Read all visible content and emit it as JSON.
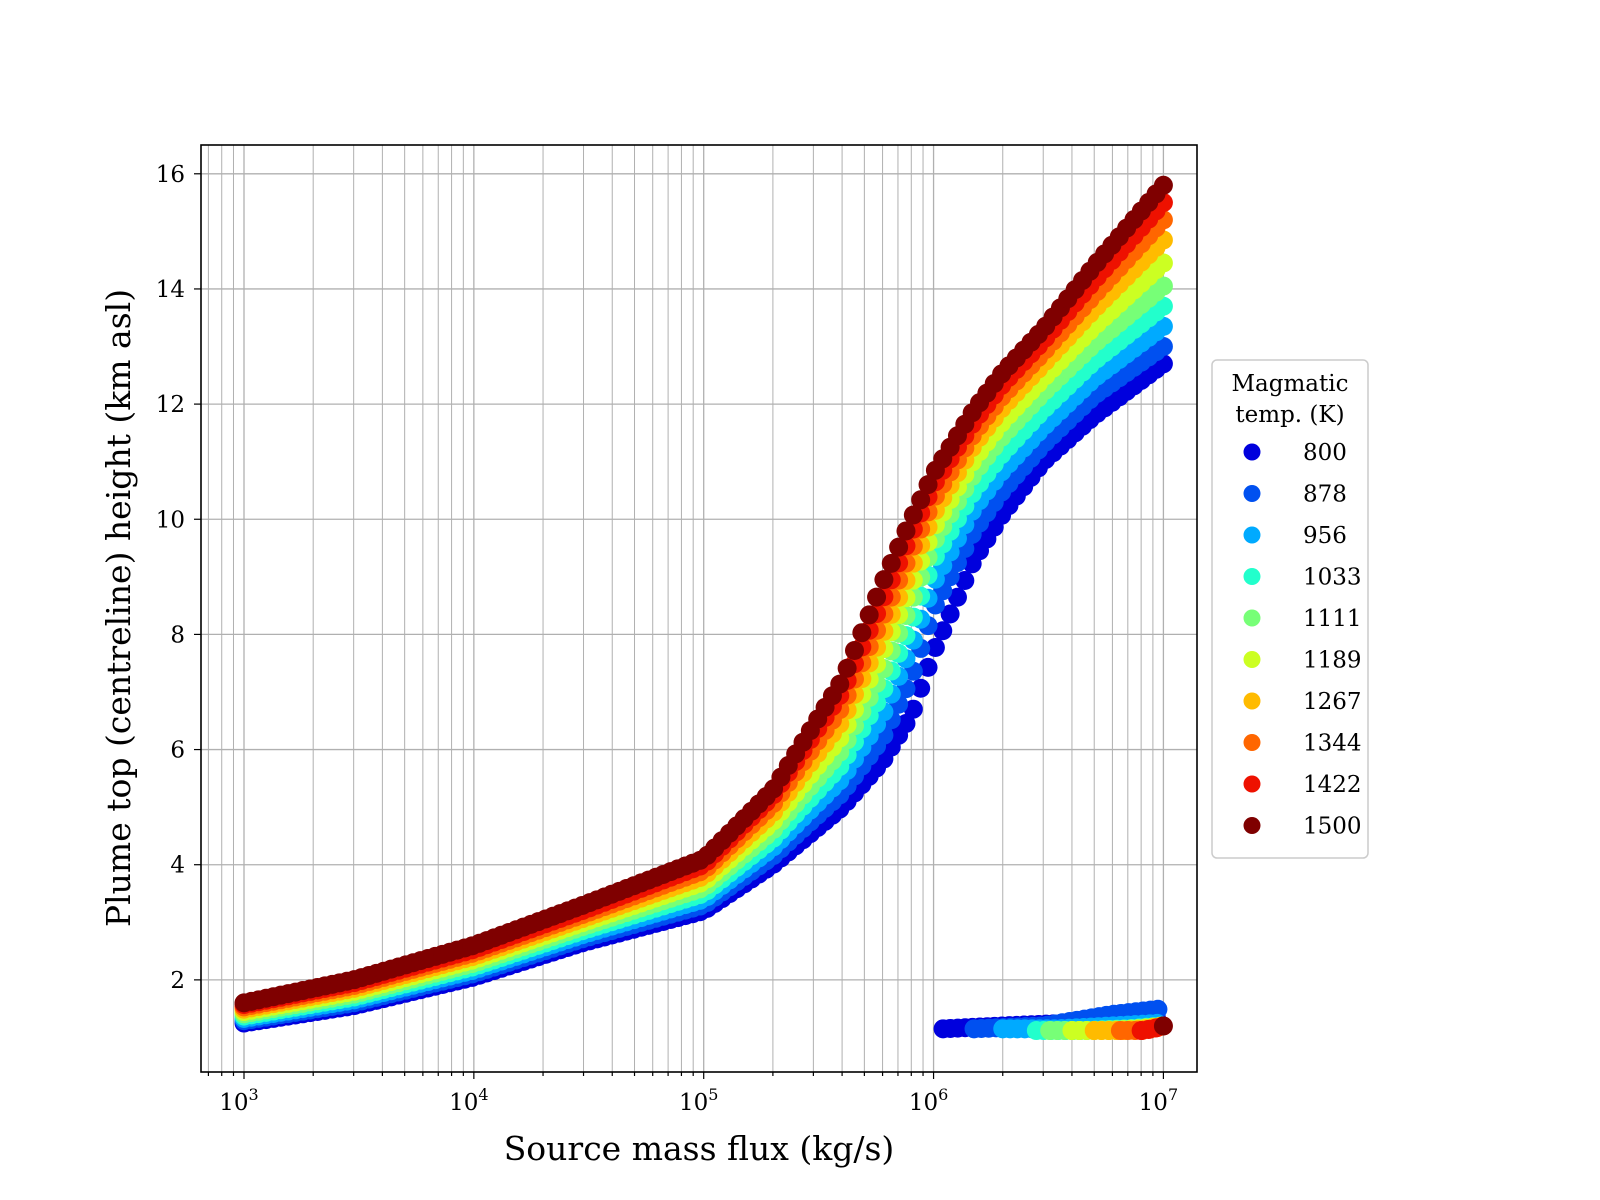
{
  "chart_data": {
    "type": "scatter",
    "title": "",
    "xlabel": "Source mass flux (kg/s)",
    "ylabel": "Plume top (centreline) height (km asl)",
    "xscale": "log",
    "xlim": [
      650,
      14000000
    ],
    "ylim": [
      0.4,
      16.5
    ],
    "x_ticks": [
      1000,
      10000,
      100000,
      1000000,
      10000000
    ],
    "x_tick_labels": [
      {
        "base": "10",
        "exp": "3"
      },
      {
        "base": "10",
        "exp": "4"
      },
      {
        "base": "10",
        "exp": "5"
      },
      {
        "base": "10",
        "exp": "6"
      },
      {
        "base": "10",
        "exp": "7"
      }
    ],
    "y_ticks": [
      2,
      4,
      6,
      8,
      10,
      12,
      14,
      16
    ],
    "y_tick_labels": [
      "2",
      "4",
      "6",
      "8",
      "10",
      "12",
      "14",
      "16"
    ],
    "grid": true,
    "legend": {
      "title_lines": [
        "Magmatic",
        "temp. (K)"
      ],
      "placement": "right-outside"
    },
    "series": [
      {
        "name": "800",
        "color": "#0000dd",
        "upper_branch": {
          "x": [
            1000,
            3000,
            10000,
            30000,
            100000,
            200000,
            400000,
            600000,
            800000,
            1000000,
            1500000,
            2000000,
            3000000,
            5000000,
            10000000
          ],
          "y": [
            1.25,
            1.55,
            2.05,
            2.65,
            3.2,
            4.0,
            5.0,
            5.8,
            6.6,
            7.7,
            9.3,
            10.1,
            11.0,
            11.8,
            12.7
          ]
        },
        "lower_branch": {
          "x": [
            1100000,
            2000000,
            4000000,
            10000000
          ],
          "y": [
            1.15,
            1.2,
            1.25,
            1.35
          ]
        }
      },
      {
        "name": "878",
        "color": "#0050f0",
        "upper_branch": {
          "x": [
            1000,
            3000,
            10000,
            30000,
            100000,
            200000,
            400000,
            600000,
            800000,
            1000000,
            1500000,
            2000000,
            3000000,
            5000000,
            10000000
          ],
          "y": [
            1.29,
            1.6,
            2.11,
            2.72,
            3.3,
            4.15,
            5.25,
            6.2,
            7.25,
            8.45,
            9.8,
            10.5,
            11.3,
            12.15,
            13.0
          ]
        },
        "lower_branch": {
          "x": [
            1500000,
            3000000,
            6000000,
            10000000
          ],
          "y": [
            1.15,
            1.2,
            1.4,
            1.5
          ]
        }
      },
      {
        "name": "956",
        "color": "#00aaff",
        "upper_branch": {
          "x": [
            1000,
            3000,
            10000,
            30000,
            100000,
            200000,
            400000,
            600000,
            800000,
            1000000,
            1500000,
            2000000,
            3000000,
            5000000,
            10000000
          ],
          "y": [
            1.33,
            1.65,
            2.17,
            2.79,
            3.4,
            4.3,
            5.5,
            6.6,
            7.8,
            8.9,
            10.2,
            10.85,
            11.6,
            12.45,
            13.35
          ]
        },
        "lower_branch": {
          "x": [
            2000000,
            3500000,
            6000000,
            10000000
          ],
          "y": [
            1.15,
            1.15,
            1.2,
            1.25
          ]
        }
      },
      {
        "name": "1033",
        "color": "#22ffcc",
        "upper_branch": {
          "x": [
            1000,
            3000,
            10000,
            30000,
            100000,
            200000,
            400000,
            600000,
            800000,
            1000000,
            1500000,
            2000000,
            3000000,
            5000000,
            10000000
          ],
          "y": [
            1.37,
            1.7,
            2.23,
            2.86,
            3.5,
            4.45,
            5.75,
            7.0,
            8.2,
            9.3,
            10.5,
            11.15,
            11.9,
            12.75,
            13.7
          ]
        },
        "lower_branch": {
          "x": [
            2800000,
            4500000,
            7000000,
            10000000
          ],
          "y": [
            1.12,
            1.12,
            1.15,
            1.2
          ]
        }
      },
      {
        "name": "1111",
        "color": "#77ff77",
        "upper_branch": {
          "x": [
            1000,
            3000,
            10000,
            30000,
            100000,
            200000,
            400000,
            600000,
            800000,
            1000000,
            1500000,
            2000000,
            3000000,
            5000000,
            10000000
          ],
          "y": [
            1.41,
            1.75,
            2.29,
            2.93,
            3.6,
            4.6,
            6.0,
            7.35,
            8.55,
            9.6,
            10.8,
            11.45,
            12.2,
            13.05,
            14.05
          ]
        },
        "lower_branch": {
          "x": [
            3200000,
            5000000,
            7500000,
            10000000
          ],
          "y": [
            1.12,
            1.12,
            1.15,
            1.2
          ]
        }
      },
      {
        "name": "1189",
        "color": "#ccff22",
        "upper_branch": {
          "x": [
            1000,
            3000,
            10000,
            30000,
            100000,
            200000,
            400000,
            600000,
            800000,
            1000000,
            1500000,
            2000000,
            3000000,
            5000000,
            10000000
          ],
          "y": [
            1.45,
            1.8,
            2.35,
            3.0,
            3.7,
            4.75,
            6.25,
            7.7,
            8.85,
            9.85,
            11.05,
            11.7,
            12.45,
            13.35,
            14.45
          ]
        },
        "lower_branch": {
          "x": [
            4000000,
            6000000,
            8000000,
            10000000
          ],
          "y": [
            1.12,
            1.12,
            1.15,
            1.2
          ]
        }
      },
      {
        "name": "1267",
        "color": "#ffbb00",
        "upper_branch": {
          "x": [
            1000,
            3000,
            10000,
            30000,
            100000,
            200000,
            400000,
            600000,
            800000,
            1000000,
            1500000,
            2000000,
            3000000,
            5000000,
            10000000
          ],
          "y": [
            1.49,
            1.85,
            2.41,
            3.07,
            3.8,
            4.9,
            6.5,
            8.0,
            9.15,
            10.1,
            11.3,
            11.95,
            12.7,
            13.65,
            14.85
          ]
        },
        "lower_branch": {
          "x": [
            5000000,
            7000000,
            8500000,
            10000000
          ],
          "y": [
            1.12,
            1.12,
            1.15,
            1.2
          ]
        }
      },
      {
        "name": "1344",
        "color": "#ff6600",
        "upper_branch": {
          "x": [
            1000,
            3000,
            10000,
            30000,
            100000,
            200000,
            400000,
            600000,
            800000,
            1000000,
            1500000,
            2000000,
            3000000,
            5000000,
            10000000
          ],
          "y": [
            1.53,
            1.9,
            2.47,
            3.14,
            3.9,
            5.05,
            6.75,
            8.3,
            9.45,
            10.35,
            11.5,
            12.15,
            12.9,
            13.9,
            15.2
          ]
        },
        "lower_branch": {
          "x": [
            6500000,
            8000000,
            9000000,
            10000000
          ],
          "y": [
            1.12,
            1.12,
            1.15,
            1.2
          ]
        }
      },
      {
        "name": "1422",
        "color": "#ee1100",
        "upper_branch": {
          "x": [
            1000,
            3000,
            10000,
            30000,
            100000,
            200000,
            400000,
            600000,
            800000,
            1000000,
            1500000,
            2000000,
            3000000,
            5000000,
            10000000
          ],
          "y": [
            1.57,
            1.95,
            2.53,
            3.21,
            4.0,
            5.2,
            7.0,
            8.6,
            9.75,
            10.6,
            11.7,
            12.35,
            13.1,
            14.15,
            15.5
          ]
        },
        "lower_branch": {
          "x": [
            8000000,
            9000000,
            10000000
          ],
          "y": [
            1.12,
            1.15,
            1.2
          ]
        }
      },
      {
        "name": "1500",
        "color": "#7f0000",
        "upper_branch": {
          "x": [
            1000,
            3000,
            10000,
            30000,
            100000,
            200000,
            400000,
            600000,
            800000,
            1000000,
            1500000,
            2000000,
            3000000,
            5000000,
            10000000
          ],
          "y": [
            1.6,
            2.0,
            2.6,
            3.3,
            4.1,
            5.3,
            7.2,
            8.9,
            10.0,
            10.8,
            11.9,
            12.55,
            13.3,
            14.4,
            15.8
          ]
        },
        "lower_branch": {
          "x": [
            10000000
          ],
          "y": [
            1.2
          ]
        }
      }
    ]
  }
}
